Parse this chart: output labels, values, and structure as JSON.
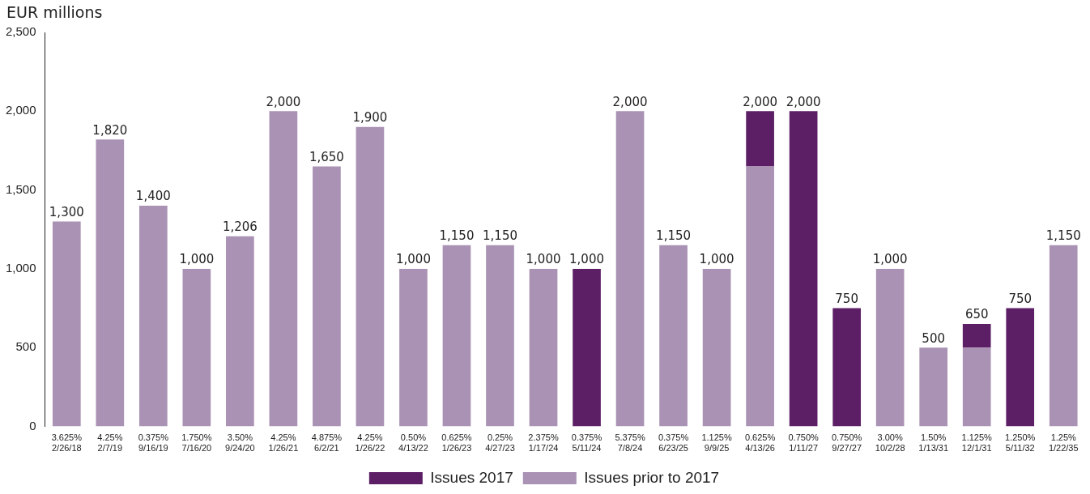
{
  "chart_data": {
    "type": "bar",
    "ylabel": "EUR millions",
    "stacked": true,
    "categories": [
      "3.625%\n2/26/18",
      "4.25%\n2/7/19",
      "0.375%\n9/16/19",
      "1.750%\n7/16/20",
      "3.50%\n9/24/20",
      "4.25%\n1/26/21",
      "4.875%\n6/2/21",
      "4.25%\n1/26/22",
      "0.50%\n4/13/22",
      "0.625%\n1/26/23",
      "0.25%\n4/27/23",
      "2.375%\n1/17/24",
      "0.375%\n5/11/24",
      "5.375%\n7/8/24",
      "0.375%\n6/23/25",
      "1.125%\n9/9/25",
      "0.625%\n4/13/26",
      "0.750%\n1/11/27",
      "0.750%\n9/27/27",
      "3.00%\n10/2/28",
      "1.50%\n1/13/31",
      "1.125%\n12/1/31",
      "1.250%\n5/11/32",
      "1.25%\n1/22/35"
    ],
    "series": [
      {
        "name": "Issues prior to 2017",
        "color": "#a992b4",
        "values": [
          1300,
          1820,
          1400,
          1000,
          1206,
          2000,
          1650,
          1900,
          1000,
          1150,
          1150,
          1000,
          null,
          2000,
          1150,
          1000,
          1650,
          null,
          null,
          1000,
          500,
          500,
          null,
          1150
        ]
      },
      {
        "name": "Issues 2017",
        "color": "#5c1f66",
        "values": [
          null,
          null,
          null,
          null,
          null,
          null,
          null,
          null,
          null,
          null,
          null,
          null,
          1000,
          null,
          null,
          null,
          350,
          2000,
          750,
          null,
          null,
          150,
          750,
          null
        ]
      }
    ],
    "totals": [
      "1,300",
      "1,820",
      "1,400",
      "1,000",
      "1,206",
      "2,000",
      "1,650",
      "1,900",
      "1,000",
      "1,150",
      "1,150",
      "1,000",
      "1,000",
      "2,000",
      "1,150",
      "1,000",
      "2,000",
      "2,000",
      "750",
      "1,000",
      "500",
      "650",
      "750",
      "1,150"
    ],
    "ylim": [
      0,
      2500
    ],
    "yticks": [
      {
        "value": 0,
        "label": "0"
      },
      {
        "value": 500,
        "label": "500"
      },
      {
        "value": 1000,
        "label": "1,000"
      },
      {
        "value": 1500,
        "label": "1,500"
      },
      {
        "value": 2000,
        "label": "2,000"
      },
      {
        "value": 2500,
        "label": "2,500"
      }
    ],
    "grid": false,
    "legend": "bottom"
  }
}
